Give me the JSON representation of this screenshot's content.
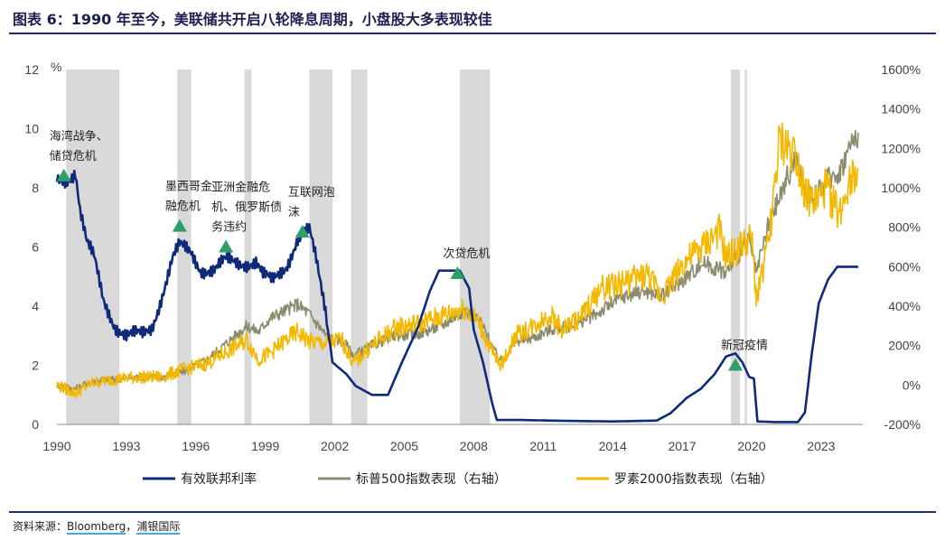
{
  "header": {
    "title": "图表 6：1990 年至今，美联储共开启八轮降息周期，小盘股大多表现较佳"
  },
  "footer": {
    "source_prefix": "资料来源：",
    "source_bloomberg": "Bloomberg",
    "source_sep": "，",
    "source_spdb": "浦银国际"
  },
  "chart_data": {
    "type": "line",
    "title": "1990 年至今，美联储共开启八轮降息周期，小盘股大多表现较佳",
    "ylabel": "%",
    "x_ticks": [
      "1990",
      "1993",
      "1996",
      "1999",
      "2002",
      "2005",
      "2008",
      "2011",
      "2014",
      "2017",
      "2020",
      "2023"
    ],
    "y_left_ticks": [
      "0",
      "2",
      "4",
      "6",
      "8",
      "10",
      "12"
    ],
    "y_right_ticks": [
      "-200%",
      "0%",
      "200%",
      "400%",
      "600%",
      "800%",
      "1000%",
      "1200%",
      "1400%",
      "1600%"
    ],
    "ylim_left": [
      0,
      12
    ],
    "ylim_right": [
      -200,
      1600
    ],
    "xlim": [
      1990,
      2024.8
    ],
    "shaded_periods": [
      [
        1990.4,
        1992.7
      ],
      [
        1995.2,
        1995.8
      ],
      [
        1998.1,
        1998.4
      ],
      [
        2000.9,
        2001.9
      ],
      [
        2002.7,
        2003.4
      ],
      [
        2007.4,
        2008.7
      ],
      [
        2019.1,
        2019.5
      ],
      [
        2019.7,
        2019.8
      ]
    ],
    "series": [
      {
        "name": "有效联邦利率",
        "axis": "left",
        "color": "#0f2a78",
        "points": [
          [
            1990.0,
            8.2
          ],
          [
            1990.4,
            8.3
          ],
          [
            1990.8,
            8.6
          ],
          [
            1991.0,
            7.3
          ],
          [
            1991.3,
            6.1
          ],
          [
            1991.6,
            5.6
          ],
          [
            1992.0,
            4.2
          ],
          [
            1992.5,
            3.4
          ],
          [
            1993.0,
            3.0
          ],
          [
            1993.7,
            3.0
          ],
          [
            1994.1,
            3.3
          ],
          [
            1994.5,
            4.3
          ],
          [
            1995.0,
            5.6
          ],
          [
            1995.3,
            6.0
          ],
          [
            1995.8,
            5.8
          ],
          [
            1996.2,
            5.3
          ],
          [
            1996.8,
            5.2
          ],
          [
            1997.3,
            5.5
          ],
          [
            1998.0,
            5.5
          ],
          [
            1998.6,
            5.5
          ],
          [
            1998.9,
            5.0
          ],
          [
            1999.3,
            4.8
          ],
          [
            1999.9,
            5.4
          ],
          [
            2000.4,
            6.3
          ],
          [
            2000.9,
            6.5
          ],
          [
            2001.2,
            5.5
          ],
          [
            2001.6,
            3.9
          ],
          [
            2001.9,
            2.1
          ],
          [
            2002.5,
            1.7
          ],
          [
            2002.9,
            1.3
          ],
          [
            2003.6,
            1.0
          ],
          [
            2004.3,
            1.0
          ],
          [
            2004.9,
            2.1
          ],
          [
            2005.6,
            3.3
          ],
          [
            2006.1,
            4.5
          ],
          [
            2006.5,
            5.2
          ],
          [
            2007.4,
            5.2
          ],
          [
            2007.8,
            4.6
          ],
          [
            2008.0,
            3.2
          ],
          [
            2008.4,
            2.1
          ],
          [
            2008.8,
            0.7
          ],
          [
            2009.0,
            0.15
          ],
          [
            2010.0,
            0.15
          ],
          [
            2012.0,
            0.12
          ],
          [
            2014.0,
            0.1
          ],
          [
            2015.9,
            0.13
          ],
          [
            2016.5,
            0.38
          ],
          [
            2017.2,
            0.9
          ],
          [
            2017.8,
            1.2
          ],
          [
            2018.4,
            1.7
          ],
          [
            2018.9,
            2.3
          ],
          [
            2019.3,
            2.4
          ],
          [
            2019.6,
            2.1
          ],
          [
            2019.9,
            1.6
          ],
          [
            2020.1,
            1.55
          ],
          [
            2020.25,
            0.1
          ],
          [
            2021.0,
            0.08
          ],
          [
            2022.0,
            0.08
          ],
          [
            2022.3,
            0.4
          ],
          [
            2022.6,
            2.4
          ],
          [
            2022.9,
            4.1
          ],
          [
            2023.3,
            4.9
          ],
          [
            2023.7,
            5.33
          ],
          [
            2024.6,
            5.33
          ]
        ]
      },
      {
        "name": "标普500指数表现（右轴）",
        "axis": "right",
        "color": "#8b8b70",
        "points": [
          [
            1990.0,
            0
          ],
          [
            1990.8,
            -20
          ],
          [
            1991.5,
            20
          ],
          [
            1992.5,
            30
          ],
          [
            1993.5,
            40
          ],
          [
            1994.5,
            40
          ],
          [
            1995.5,
            70
          ],
          [
            1996.5,
            130
          ],
          [
            1997.5,
            230
          ],
          [
            1998.2,
            300
          ],
          [
            1998.7,
            270
          ],
          [
            1999.2,
            340
          ],
          [
            1999.9,
            380
          ],
          [
            2000.4,
            410
          ],
          [
            2000.9,
            360
          ],
          [
            2001.7,
            240
          ],
          [
            2002.4,
            220
          ],
          [
            2002.8,
            150
          ],
          [
            2003.6,
            200
          ],
          [
            2004.6,
            250
          ],
          [
            2005.6,
            260
          ],
          [
            2006.6,
            300
          ],
          [
            2007.6,
            380
          ],
          [
            2008.3,
            320
          ],
          [
            2008.9,
            170
          ],
          [
            2009.2,
            120
          ],
          [
            2009.8,
            220
          ],
          [
            2010.6,
            240
          ],
          [
            2011.3,
            280
          ],
          [
            2012.3,
            300
          ],
          [
            2013.3,
            360
          ],
          [
            2014.3,
            440
          ],
          [
            2015.3,
            480
          ],
          [
            2016.1,
            450
          ],
          [
            2017.0,
            530
          ],
          [
            2017.9,
            620
          ],
          [
            2018.9,
            570
          ],
          [
            2019.3,
            640
          ],
          [
            2019.9,
            730
          ],
          [
            2020.2,
            560
          ],
          [
            2020.7,
            800
          ],
          [
            2021.3,
            980
          ],
          [
            2021.9,
            1150
          ],
          [
            2022.4,
            970
          ],
          [
            2022.8,
            960
          ],
          [
            2023.4,
            1060
          ],
          [
            2023.8,
            1080
          ],
          [
            2024.2,
            1200
          ],
          [
            2024.6,
            1280
          ]
        ]
      },
      {
        "name": "罗素2000指数表现（右轴）",
        "axis": "right",
        "color": "#f5b800",
        "points": [
          [
            1990.0,
            0
          ],
          [
            1990.8,
            -40
          ],
          [
            1991.5,
            10
          ],
          [
            1992.5,
            30
          ],
          [
            1993.5,
            40
          ],
          [
            1994.5,
            40
          ],
          [
            1995.5,
            80
          ],
          [
            1996.5,
            110
          ],
          [
            1997.5,
            180
          ],
          [
            1998.2,
            230
          ],
          [
            1998.7,
            130
          ],
          [
            1999.2,
            160
          ],
          [
            1999.9,
            230
          ],
          [
            2000.4,
            270
          ],
          [
            2000.9,
            220
          ],
          [
            2001.6,
            210
          ],
          [
            2002.3,
            230
          ],
          [
            2002.8,
            110
          ],
          [
            2003.6,
            200
          ],
          [
            2004.6,
            290
          ],
          [
            2005.6,
            310
          ],
          [
            2006.6,
            350
          ],
          [
            2007.6,
            390
          ],
          [
            2008.2,
            320
          ],
          [
            2008.9,
            140
          ],
          [
            2009.2,
            100
          ],
          [
            2009.8,
            250
          ],
          [
            2010.6,
            300
          ],
          [
            2011.3,
            360
          ],
          [
            2011.8,
            280
          ],
          [
            2012.6,
            340
          ],
          [
            2013.5,
            490
          ],
          [
            2014.5,
            520
          ],
          [
            2015.5,
            560
          ],
          [
            2016.1,
            450
          ],
          [
            2017.0,
            610
          ],
          [
            2017.9,
            700
          ],
          [
            2018.6,
            780
          ],
          [
            2018.9,
            640
          ],
          [
            2019.6,
            710
          ],
          [
            2020.0,
            740
          ],
          [
            2020.2,
            440
          ],
          [
            2020.7,
            700
          ],
          [
            2021.0,
            1000
          ],
          [
            2021.2,
            1230
          ],
          [
            2021.9,
            1180
          ],
          [
            2022.4,
            950
          ],
          [
            2022.8,
            920
          ],
          [
            2023.2,
            1000
          ],
          [
            2023.8,
            860
          ],
          [
            2024.2,
            1050
          ],
          [
            2024.6,
            1100
          ]
        ]
      }
    ],
    "annotations": [
      {
        "lines": [
          "海湾战争、",
          "储贷危机"
        ],
        "x": 1990.3,
        "y": 8.4
      },
      {
        "lines": [
          "墨西哥金",
          "融危机"
        ],
        "x": 1995.3,
        "y": 6.7
      },
      {
        "lines": [
          "亚洲金融危",
          "机、俄罗斯债",
          "务违约"
        ],
        "x": 1997.3,
        "y": 6.0
      },
      {
        "lines": [
          "互联网泡",
          "沫"
        ],
        "x": 2000.6,
        "y": 6.5
      },
      {
        "lines": [
          "次贷危机"
        ],
        "x": 2007.3,
        "y": 5.1
      },
      {
        "lines": [
          "新冠疫情"
        ],
        "x": 2019.3,
        "y": 2.0
      }
    ],
    "legend": [
      {
        "label": "有效联邦利率",
        "color": "#0f2a78"
      },
      {
        "label": "标普500指数表现（右轴）",
        "color": "#8b8b70"
      },
      {
        "label": "罗素2000指数表现（右轴）",
        "color": "#f5b800"
      }
    ]
  }
}
